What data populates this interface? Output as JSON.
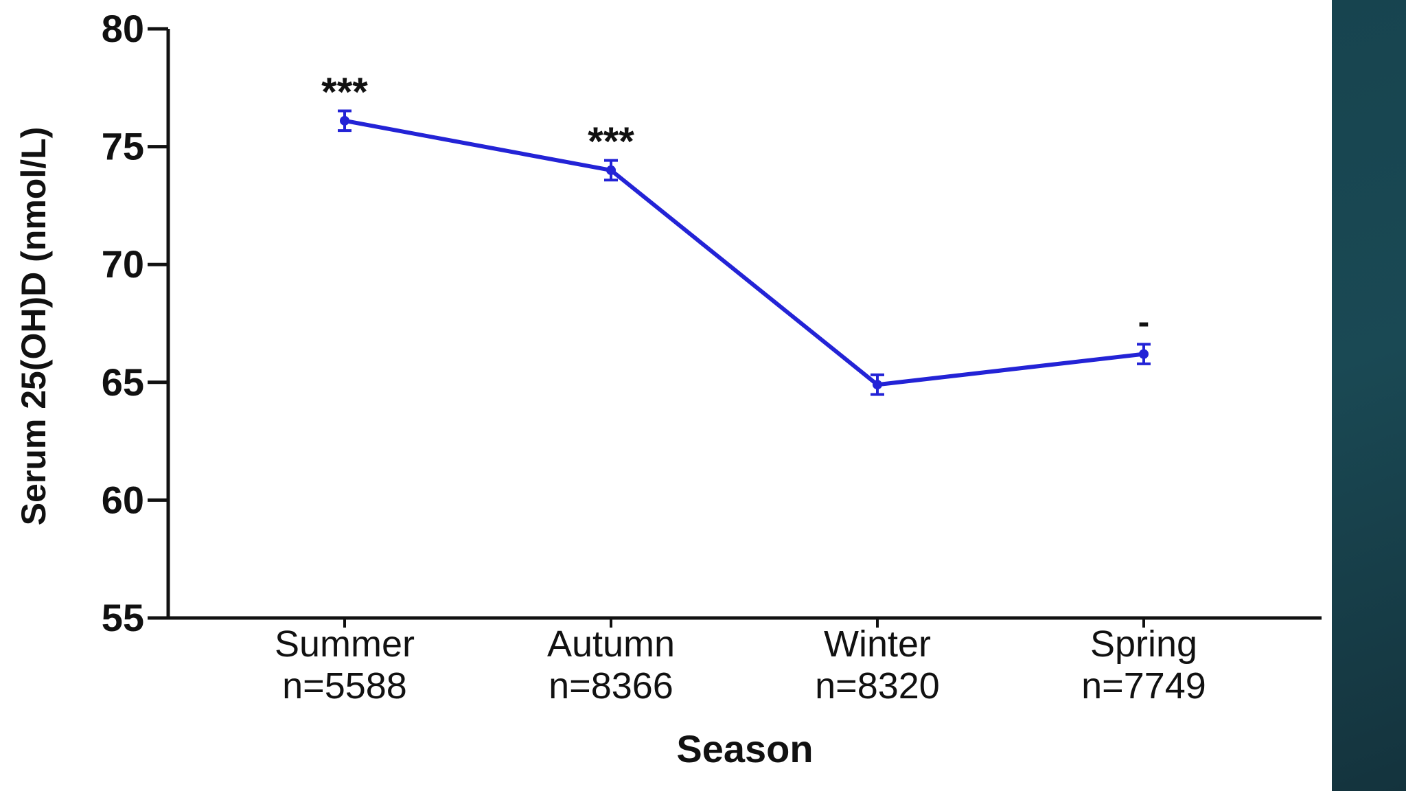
{
  "slide": {
    "side_panel_color": "#17444f"
  },
  "chart_data": {
    "type": "line",
    "title": "",
    "xlabel": "Season",
    "ylabel": "Serum 25(OH)D (nmol/L)",
    "ylim": [
      55,
      80
    ],
    "yticks": [
      "55",
      "60",
      "65",
      "70",
      "75",
      "80"
    ],
    "categories": [
      "Summer",
      "Autumn",
      "Winter",
      "Spring"
    ],
    "sample_sizes": [
      "n=5588",
      "n=8366",
      "n=8320",
      "n=7749"
    ],
    "series": [
      {
        "color": "#2323d6",
        "values": [
          76.1,
          74.0,
          64.9,
          66.2
        ],
        "error": [
          0.3,
          0.3,
          0.3,
          0.3
        ]
      }
    ],
    "annotations": [
      "***",
      "***",
      "",
      "-"
    ],
    "grid": false,
    "legend": "none"
  }
}
